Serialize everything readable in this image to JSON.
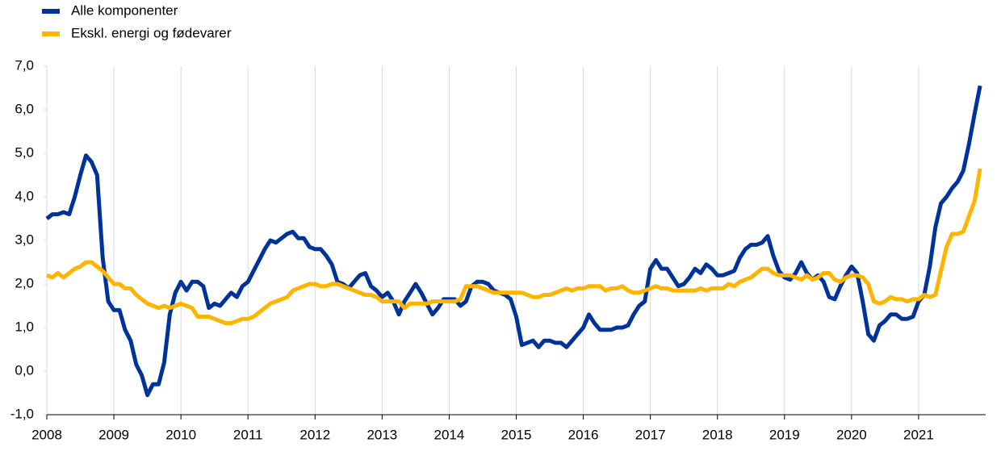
{
  "chart_data": {
    "type": "line",
    "categories": [
      "2008",
      null,
      null,
      null,
      null,
      null,
      null,
      null,
      null,
      null,
      null,
      null,
      "2009",
      null,
      null,
      null,
      null,
      null,
      null,
      null,
      null,
      null,
      null,
      null,
      "2010",
      null,
      null,
      null,
      null,
      null,
      null,
      null,
      null,
      null,
      null,
      null,
      "2011",
      null,
      null,
      null,
      null,
      null,
      null,
      null,
      null,
      null,
      null,
      null,
      "2012",
      null,
      null,
      null,
      null,
      null,
      null,
      null,
      null,
      null,
      null,
      null,
      "2013",
      null,
      null,
      null,
      null,
      null,
      null,
      null,
      null,
      null,
      null,
      null,
      "2014",
      null,
      null,
      null,
      null,
      null,
      null,
      null,
      null,
      null,
      null,
      null,
      "2015",
      null,
      null,
      null,
      null,
      null,
      null,
      null,
      null,
      null,
      null,
      null,
      "2016",
      null,
      null,
      null,
      null,
      null,
      null,
      null,
      null,
      null,
      null,
      null,
      "2017",
      null,
      null,
      null,
      null,
      null,
      null,
      null,
      null,
      null,
      null,
      null,
      "2018",
      null,
      null,
      null,
      null,
      null,
      null,
      null,
      null,
      null,
      null,
      null,
      "2019",
      null,
      null,
      null,
      null,
      null,
      null,
      null,
      null,
      null,
      null,
      null,
      "2020",
      null,
      null,
      null,
      null,
      null,
      null,
      null,
      null,
      null,
      null,
      null,
      "2021",
      null,
      null,
      null,
      null,
      null,
      null,
      null,
      null,
      null,
      null,
      null
    ],
    "series": [
      {
        "name": "Alle komponenter",
        "color": "#003399",
        "values": [
          3.5,
          3.6,
          3.6,
          3.65,
          3.6,
          4.0,
          4.5,
          4.95,
          4.8,
          4.5,
          2.6,
          1.6,
          1.4,
          1.4,
          0.95,
          0.7,
          0.15,
          -0.1,
          -0.55,
          -0.3,
          -0.3,
          0.2,
          1.3,
          1.8,
          2.05,
          1.85,
          2.05,
          2.05,
          1.95,
          1.45,
          1.55,
          1.5,
          1.65,
          1.8,
          1.7,
          1.95,
          2.05,
          2.3,
          2.55,
          2.8,
          3.0,
          2.95,
          3.05,
          3.15,
          3.2,
          3.05,
          3.05,
          2.85,
          2.8,
          2.8,
          2.65,
          2.45,
          2.05,
          2.0,
          1.9,
          2.05,
          2.2,
          2.25,
          1.95,
          1.85,
          1.7,
          1.8,
          1.6,
          1.3,
          1.6,
          1.8,
          2.0,
          1.8,
          1.55,
          1.3,
          1.45,
          1.65,
          1.65,
          1.65,
          1.5,
          1.6,
          1.95,
          2.05,
          2.05,
          2.0,
          1.85,
          1.8,
          1.75,
          1.65,
          1.25,
          0.6,
          0.65,
          0.7,
          0.55,
          0.7,
          0.7,
          0.65,
          0.65,
          0.55,
          0.7,
          0.85,
          1.0,
          1.3,
          1.1,
          0.95,
          0.95,
          0.95,
          1.0,
          1.0,
          1.05,
          1.3,
          1.5,
          1.6,
          2.35,
          2.55,
          2.35,
          2.35,
          2.15,
          1.95,
          2.0,
          2.15,
          2.35,
          2.25,
          2.45,
          2.35,
          2.2,
          2.2,
          2.25,
          2.3,
          2.6,
          2.8,
          2.9,
          2.9,
          2.95,
          3.1,
          2.65,
          2.3,
          2.15,
          2.1,
          2.25,
          2.5,
          2.25,
          2.1,
          2.2,
          2.05,
          1.7,
          1.65,
          1.95,
          2.2,
          2.4,
          2.25,
          1.6,
          0.85,
          0.7,
          1.05,
          1.15,
          1.3,
          1.3,
          1.2,
          1.2,
          1.25,
          1.6,
          1.75,
          2.4,
          3.3,
          3.85,
          4.0,
          4.2,
          4.35,
          4.6,
          5.2,
          5.9,
          6.55
        ]
      },
      {
        "name": "Ekskl. energi og fødevarer",
        "color": "#ffb400",
        "values": [
          2.2,
          2.15,
          2.25,
          2.15,
          2.25,
          2.35,
          2.4,
          2.5,
          2.5,
          2.4,
          2.3,
          2.15,
          2.0,
          2.0,
          1.9,
          1.9,
          1.75,
          1.65,
          1.55,
          1.5,
          1.45,
          1.5,
          1.45,
          1.5,
          1.55,
          1.5,
          1.45,
          1.25,
          1.25,
          1.25,
          1.2,
          1.15,
          1.1,
          1.1,
          1.15,
          1.2,
          1.2,
          1.25,
          1.35,
          1.45,
          1.55,
          1.6,
          1.65,
          1.7,
          1.85,
          1.9,
          1.95,
          2.0,
          2.0,
          1.95,
          1.95,
          2.0,
          2.0,
          1.95,
          1.9,
          1.85,
          1.8,
          1.75,
          1.75,
          1.7,
          1.6,
          1.6,
          1.6,
          1.6,
          1.45,
          1.55,
          1.55,
          1.55,
          1.55,
          1.6,
          1.6,
          1.6,
          1.6,
          1.6,
          1.65,
          1.95,
          1.95,
          1.95,
          1.9,
          1.85,
          1.8,
          1.8,
          1.8,
          1.8,
          1.8,
          1.8,
          1.75,
          1.7,
          1.7,
          1.75,
          1.75,
          1.8,
          1.85,
          1.9,
          1.85,
          1.9,
          1.9,
          1.95,
          1.95,
          1.95,
          1.85,
          1.9,
          1.9,
          1.95,
          1.85,
          1.8,
          1.8,
          1.85,
          1.9,
          1.95,
          1.9,
          1.9,
          1.85,
          1.85,
          1.85,
          1.85,
          1.85,
          1.9,
          1.85,
          1.9,
          1.9,
          1.9,
          2.0,
          1.95,
          2.05,
          2.1,
          2.15,
          2.25,
          2.35,
          2.35,
          2.25,
          2.2,
          2.2,
          2.2,
          2.15,
          2.1,
          2.2,
          2.1,
          2.15,
          2.25,
          2.25,
          2.1,
          2.05,
          2.15,
          2.2,
          2.2,
          2.15,
          2.0,
          1.6,
          1.55,
          1.6,
          1.7,
          1.65,
          1.65,
          1.6,
          1.65,
          1.65,
          1.75,
          1.7,
          1.75,
          2.3,
          2.85,
          3.15,
          3.15,
          3.2,
          3.55,
          3.9,
          4.65
        ]
      }
    ],
    "ylim": [
      -1,
      7
    ],
    "yticks": [
      {
        "value": -1,
        "label": "-1,0"
      },
      {
        "value": 0,
        "label": "0,0"
      },
      {
        "value": 1,
        "label": "1,0"
      },
      {
        "value": 2,
        "label": "2,0"
      },
      {
        "value": 3,
        "label": "3,0"
      },
      {
        "value": 4,
        "label": "4,0"
      },
      {
        "value": 5,
        "label": "5,0"
      },
      {
        "value": 6,
        "label": "6,0"
      },
      {
        "value": 7,
        "label": "7,0"
      }
    ],
    "grid": true,
    "legend": "top-left"
  }
}
